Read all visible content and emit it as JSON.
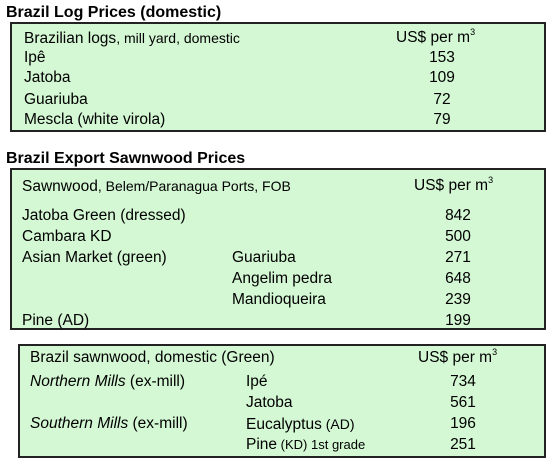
{
  "log_prices": {
    "title": "Brazil Log Prices (domestic)",
    "header_label": "Brazilian logs",
    "header_sub": ", mill yard, domestic",
    "header_unit": "US$ per m",
    "header_unit_sup": "3",
    "rows": [
      {
        "name": "Ipê",
        "value": "153"
      },
      {
        "name": "Jatoba",
        "value": "109"
      },
      {
        "name": "Guariuba",
        "value": "72"
      },
      {
        "name": "Mescla (white virola)",
        "value": "79"
      }
    ]
  },
  "export_sawnwood": {
    "title": "Brazil Export Sawnwood Prices",
    "header_label": "Sawnwood",
    "header_sub": ", Belem/Paranagua Ports, FOB",
    "header_unit": "US$ per m",
    "header_unit_sup": "3",
    "rows": [
      {
        "name": "Jatoba Green (dressed)",
        "sub": "",
        "value": "842"
      },
      {
        "name": "Cambara KD",
        "sub": "",
        "value": "500"
      },
      {
        "name": "Asian Market (green)",
        "sub": "Guariuba",
        "value": "271"
      },
      {
        "name": "",
        "sub": "Angelim pedra",
        "value": "648"
      },
      {
        "name": "",
        "sub": "Mandioqueira",
        "value": "239"
      },
      {
        "name": "Pine (AD)",
        "sub": "",
        "value": "199"
      }
    ]
  },
  "domestic_sawnwood": {
    "header_label": "Brazil sawnwood, domestic (Green)",
    "header_unit": "US$ per m",
    "header_unit_sup": "3",
    "rows": [
      {
        "group": "Northern Mills",
        "group_sub": " (ex-mill)",
        "species": "Ipé",
        "species_sub": "",
        "species_tail": "",
        "value": "734"
      },
      {
        "group": "",
        "group_sub": "",
        "species": "Jatoba",
        "species_sub": "",
        "species_tail": "",
        "value": "561"
      },
      {
        "group": "Southern Mills",
        "group_sub": " (ex-mill)",
        "species": "Eucalyptus",
        "species_sub": " (AD)",
        "species_tail": "",
        "value": "196"
      },
      {
        "group": "",
        "group_sub": "",
        "species": "Pine",
        "species_sub": " (KD)",
        "species_tail": " 1st grade",
        "value": "251"
      }
    ]
  }
}
